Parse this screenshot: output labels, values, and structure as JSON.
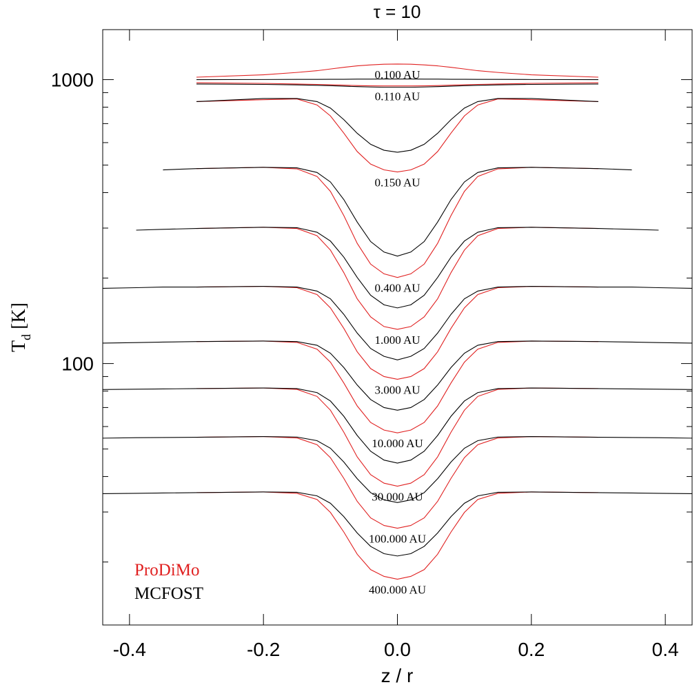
{
  "chart_data": {
    "type": "line",
    "title": "τ = 10",
    "xlabel": "z / r",
    "ylabel": [
      "T",
      "d",
      " [K]"
    ],
    "xlim": [
      -0.44,
      0.44
    ],
    "ylim": [
      12,
      1500
    ],
    "ylog": true,
    "xticks": [
      -0.4,
      -0.2,
      {
        "value": 0,
        "label": "0.0"
      },
      0.2,
      0.4
    ],
    "yticks": [
      100,
      1000
    ],
    "yminorticks": [
      20,
      30,
      40,
      50,
      60,
      70,
      80,
      90,
      200,
      300,
      400,
      500,
      600,
      700,
      800,
      900
    ],
    "legend_position": "lower left",
    "x": [
      -0.44,
      -0.39,
      -0.35,
      -0.3,
      -0.2,
      -0.15,
      -0.12,
      -0.1,
      -0.08,
      -0.06,
      -0.04,
      -0.02,
      0,
      0.02,
      0.04,
      0.06,
      0.08,
      0.1,
      0.12,
      0.15,
      0.2,
      0.3,
      0.35,
      0.39,
      0.44
    ],
    "curve_labels": [
      "0.100 AU",
      "0.110 AU",
      "0.150 AU",
      "0.400 AU",
      "1.000 AU",
      "3.000 AU",
      "10.000 AU",
      "30.000 AU",
      "100.000 AU",
      "400.000 AU"
    ],
    "series": [
      {
        "name": "ProDiMo",
        "color": "#e02020",
        "curves": [
          [
            null,
            null,
            null,
            1020,
            1040,
            1060,
            1075,
            1090,
            1105,
            1118,
            1127,
            1133,
            1135,
            1133,
            1127,
            1118,
            1105,
            1090,
            1075,
            1060,
            1040,
            1020,
            null,
            null,
            null
          ],
          [
            null,
            null,
            null,
            975,
            970,
            965,
            962,
            959,
            956,
            953,
            951,
            950,
            950,
            950,
            951,
            953,
            956,
            959,
            962,
            965,
            970,
            975,
            null,
            null,
            null
          ],
          [
            null,
            null,
            null,
            837,
            850,
            855,
            814,
            745,
            648,
            558,
            504,
            481,
            473,
            481,
            504,
            558,
            648,
            745,
            814,
            855,
            850,
            837,
            null,
            null,
            null
          ],
          [
            null,
            null,
            null,
            486,
            491,
            485,
            456,
            404,
            332,
            265,
            224,
            207,
            201,
            207,
            224,
            265,
            332,
            404,
            456,
            485,
            491,
            486,
            null,
            null,
            null
          ],
          [
            null,
            null,
            null,
            299,
            302,
            299,
            282,
            251,
            209,
            169,
            146,
            135,
            132,
            135,
            146,
            169,
            209,
            251,
            282,
            299,
            302,
            299,
            null,
            null,
            null
          ],
          [
            null,
            null,
            null,
            186,
            187,
            185,
            175,
            157,
            133,
            110,
            96,
            90,
            88,
            90,
            96,
            110,
            133,
            157,
            175,
            185,
            187,
            186,
            null,
            null,
            null
          ],
          [
            null,
            null,
            null,
            119.5,
            120,
            118.7,
            112.4,
            101.1,
            85.4,
            70.9,
            62,
            58.3,
            57,
            58.3,
            62,
            70.9,
            85.4,
            101.1,
            112.4,
            118.7,
            120,
            119.5,
            null,
            null,
            null
          ],
          [
            null,
            null,
            null,
            81.6,
            82,
            81.1,
            76.6,
            68.5,
            57.3,
            46.9,
            40.6,
            37.9,
            37,
            37.9,
            40.6,
            46.9,
            57.3,
            68.5,
            76.6,
            81.1,
            82,
            81.6,
            null,
            null,
            null
          ],
          [
            null,
            null,
            null,
            55,
            55.3,
            54.7,
            51.8,
            46.6,
            39.4,
            32.7,
            28.6,
            26.9,
            26.3,
            26.9,
            28.6,
            32.7,
            39.4,
            46.6,
            51.8,
            54.7,
            55.3,
            55,
            null,
            null,
            null
          ],
          [
            null,
            null,
            null,
            35.1,
            35.3,
            34.9,
            33.2,
            29.9,
            25.5,
            21.3,
            18.8,
            17.8,
            17.4,
            17.8,
            18.8,
            21.3,
            25.5,
            29.9,
            33.2,
            34.9,
            35.3,
            35.1,
            null,
            null,
            null
          ]
        ]
      },
      {
        "name": "MCFOST",
        "color": "#000000",
        "curves": [
          [
            null,
            null,
            null,
            1000,
            1001,
            1002,
            1002,
            1003,
            1003,
            1004,
            1004,
            1005,
            1005,
            1005,
            1004,
            1004,
            1003,
            1003,
            1002,
            1002,
            1001,
            1000,
            null,
            null,
            null
          ],
          [
            null,
            null,
            null,
            965,
            962,
            958,
            955,
            952,
            948,
            945,
            942,
            940,
            940,
            940,
            942,
            945,
            948,
            952,
            955,
            958,
            962,
            965,
            null,
            null,
            null
          ],
          [
            null,
            null,
            null,
            837,
            858,
            858,
            837,
            794,
            723,
            647,
            592,
            564,
            555,
            564,
            592,
            647,
            723,
            794,
            837,
            858,
            858,
            837,
            null,
            null,
            null
          ],
          [
            null,
            null,
            481,
            486,
            491,
            489,
            471,
            436,
            378,
            315,
            269,
            247,
            239,
            247,
            269,
            315,
            378,
            436,
            471,
            489,
            491,
            486,
            481,
            null,
            null
          ],
          [
            null,
            295,
            297,
            299,
            302,
            301,
            290,
            270,
            237,
            201,
            174,
            161,
            157,
            161,
            174,
            201,
            237,
            270,
            290,
            301,
            302,
            299,
            297,
            295,
            null
          ],
          [
            184,
            185,
            186,
            186,
            187,
            186,
            180,
            169,
            149,
            128,
            113,
            106,
            103,
            106,
            113,
            128,
            149,
            169,
            180,
            186,
            187,
            186,
            186,
            185,
            184
          ],
          [
            118,
            118.5,
            119,
            119.5,
            120,
            119.5,
            116,
            108.7,
            96.8,
            84,
            74.7,
            70,
            68.5,
            70,
            74.7,
            84,
            96.8,
            108.7,
            116,
            119.5,
            120,
            119.5,
            119,
            118.5,
            118
          ],
          [
            81,
            81.2,
            81.4,
            81.6,
            82,
            81.6,
            79,
            73.8,
            65.2,
            55.8,
            49.1,
            45.7,
            44.6,
            45.7,
            49.1,
            55.8,
            65.2,
            73.8,
            79,
            81.6,
            82,
            81.6,
            81.4,
            81.2,
            81
          ],
          [
            54.6,
            54.8,
            54.9,
            55,
            55.3,
            55.1,
            53.5,
            50.3,
            45,
            39.3,
            35.1,
            33.1,
            32.4,
            33.1,
            35.1,
            39.3,
            45,
            50.3,
            53.5,
            55.1,
            55.3,
            55,
            54.9,
            54.8,
            54.6
          ],
          [
            34.8,
            34.9,
            35,
            35.1,
            35.3,
            35.2,
            34.2,
            32.2,
            28.9,
            25.3,
            22.7,
            21.4,
            21,
            21.4,
            22.7,
            25.3,
            28.9,
            32.2,
            34.2,
            35.2,
            35.3,
            35.1,
            35,
            34.9,
            34.8
          ]
        ]
      }
    ]
  }
}
